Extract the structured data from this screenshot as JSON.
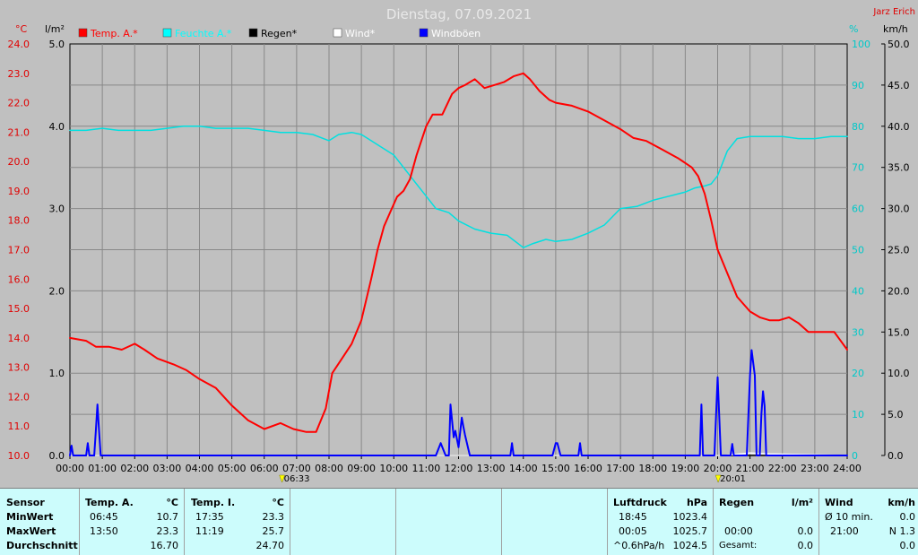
{
  "header": {
    "title": "Dienstag, 07.09.2021",
    "author": "Jarz Erich"
  },
  "axis_units": {
    "temp": "°C",
    "rain": "l/m²",
    "humidity": "%",
    "wind": "km/h"
  },
  "colors": {
    "temp": "#ff0000",
    "humidity": "#00e0e0",
    "rain": "#000000",
    "wind": "#ffffff",
    "gust": "#0000ff",
    "background": "#c0c0c0",
    "grid": "#888888",
    "stats_bg": "#ccfcfc"
  },
  "chart_data": {
    "type": "line",
    "title": "Dienstag, 07.09.2021",
    "legend": [
      {
        "label": "Temp. A.*",
        "color": "#ff0000"
      },
      {
        "label": "Feuchte A.*",
        "color": "#00ffff"
      },
      {
        "label": "Regen*",
        "color": "#000000"
      },
      {
        "label": "Wind*",
        "color": "#ffffff"
      },
      {
        "label": "Windböen",
        "color": "#0000ff"
      }
    ],
    "legend_position": "top-left",
    "grid": true,
    "x_ticks": [
      "00:00",
      "01:00",
      "02:00",
      "03:00",
      "04:00",
      "05:00",
      "06:00",
      "07:00",
      "08:00",
      "09:00",
      "10:00",
      "11:00",
      "12:00",
      "13:00",
      "14:00",
      "15:00",
      "16:00",
      "17:00",
      "18:00",
      "19:00",
      "20:00",
      "21:00",
      "22:00",
      "23:00",
      "24:00"
    ],
    "xlim_hours": [
      0,
      24
    ],
    "temp_axis": {
      "unit": "°C",
      "range": [
        10.0,
        24.0
      ],
      "ticks": [
        "24.0",
        "23.0",
        "22.0",
        "21.0",
        "20.0",
        "19.0",
        "18.0",
        "17.0",
        "16.0",
        "15.0",
        "14.0",
        "13.0",
        "12.0",
        "11.0",
        "10.0"
      ]
    },
    "rain_axis": {
      "unit": "l/m²",
      "range": [
        0.0,
        5.0
      ],
      "ticks": [
        "5.0",
        "4.0",
        "3.0",
        "2.0",
        "1.0",
        "0.0"
      ]
    },
    "humidity_axis": {
      "unit": "%",
      "range": [
        0,
        100
      ],
      "ticks": [
        "100",
        "90",
        "80",
        "70",
        "60",
        "50",
        "40",
        "30",
        "20",
        "10",
        "0"
      ]
    },
    "wind_axis": {
      "unit": "km/h",
      "range": [
        0.0,
        50.0
      ],
      "ticks": [
        "50.0",
        "45.0",
        "40.0",
        "35.0",
        "30.0",
        "25.0",
        "20.0",
        "15.0",
        "10.0",
        "5.0",
        "0.0"
      ]
    },
    "sunrise": "06:33",
    "sunset": "20:01",
    "series": [
      {
        "name": "Temp. A.*",
        "axis": "temp",
        "x": [
          0,
          0.5,
          0.8,
          1.2,
          1.6,
          2.0,
          2.3,
          2.7,
          3.2,
          3.6,
          4.0,
          4.5,
          5.0,
          5.5,
          6.0,
          6.5,
          6.9,
          7.3,
          7.6,
          7.9,
          8.1,
          8.4,
          8.7,
          9.0,
          9.3,
          9.5,
          9.7,
          9.9,
          10.1,
          10.3,
          10.5,
          10.7,
          11.0,
          11.2,
          11.5,
          11.8,
          12.0,
          12.2,
          12.5,
          12.8,
          13.1,
          13.4,
          13.7,
          14.0,
          14.2,
          14.5,
          14.8,
          15.0,
          15.5,
          16.0,
          16.5,
          17.0,
          17.4,
          17.8,
          18.3,
          18.8,
          19.2,
          19.4,
          19.6,
          19.8,
          20.0,
          20.3,
          20.6,
          21.0,
          21.3,
          21.6,
          21.9,
          22.2,
          22.5,
          22.8,
          23.2,
          23.6,
          24.0
        ],
        "y": [
          14.0,
          13.9,
          13.7,
          13.7,
          13.6,
          13.8,
          13.6,
          13.3,
          13.1,
          12.9,
          12.6,
          12.3,
          11.7,
          11.2,
          10.9,
          11.1,
          10.9,
          10.8,
          10.8,
          11.6,
          12.8,
          13.3,
          13.8,
          14.6,
          16.0,
          17.0,
          17.8,
          18.3,
          18.8,
          19.0,
          19.4,
          20.2,
          21.2,
          21.6,
          21.6,
          22.3,
          22.5,
          22.6,
          22.8,
          22.5,
          22.6,
          22.7,
          22.9,
          23.0,
          22.8,
          22.4,
          22.1,
          22.0,
          21.9,
          21.7,
          21.4,
          21.1,
          20.8,
          20.7,
          20.4,
          20.1,
          19.8,
          19.5,
          18.9,
          18.0,
          17.0,
          16.2,
          15.4,
          14.9,
          14.7,
          14.6,
          14.6,
          14.7,
          14.5,
          14.2,
          14.2,
          14.2,
          13.6
        ]
      },
      {
        "name": "Feuchte A.*",
        "axis": "humidity",
        "x": [
          0,
          0.5,
          1.0,
          1.5,
          2.0,
          2.5,
          3.0,
          3.5,
          4.0,
          4.5,
          5.0,
          5.5,
          6.0,
          6.5,
          7.0,
          7.5,
          8.0,
          8.3,
          8.7,
          9.0,
          9.3,
          9.6,
          10.0,
          10.3,
          10.7,
          11.0,
          11.3,
          11.7,
          12.0,
          12.5,
          13.0,
          13.5,
          14.0,
          14.3,
          14.7,
          15.0,
          15.5,
          16.0,
          16.5,
          17.0,
          17.5,
          18.0,
          18.5,
          19.0,
          19.3,
          19.6,
          19.8,
          20.0,
          20.3,
          20.6,
          21.0,
          21.5,
          22.0,
          22.5,
          23.0,
          23.5,
          24.0
        ],
        "y": [
          79,
          79,
          79.5,
          79,
          79,
          79,
          79.5,
          80,
          80,
          79.5,
          79.5,
          79.5,
          79,
          78.5,
          78.5,
          78,
          76.5,
          78,
          78.5,
          78,
          76.5,
          75,
          73,
          70,
          66,
          63,
          60,
          59,
          57,
          55,
          54,
          53.5,
          50.5,
          51.5,
          52.5,
          52,
          52.5,
          54,
          56,
          60,
          60.5,
          62,
          63,
          64,
          65,
          65.5,
          66,
          68,
          74,
          77,
          77.5,
          77.5,
          77.5,
          77,
          77,
          77.5,
          77.5
        ]
      },
      {
        "name": "Regen*",
        "axis": "rain",
        "x": [
          0,
          24
        ],
        "y": [
          0,
          0
        ]
      },
      {
        "name": "Wind*",
        "axis": "wind",
        "x": [
          0,
          20.2,
          21.0,
          21.6,
          24
        ],
        "y": [
          0,
          0,
          0.3,
          0.2,
          0
        ]
      },
      {
        "name": "Windböen",
        "axis": "wind",
        "x": [
          0,
          0.05,
          0.1,
          0.15,
          0.5,
          0.55,
          0.6,
          0.65,
          0.75,
          0.8,
          0.85,
          0.9,
          0.95,
          1.0,
          11.3,
          11.45,
          11.6,
          11.7,
          11.75,
          11.85,
          11.9,
          12.0,
          12.1,
          12.15,
          12.2,
          12.35,
          12.5,
          12.6,
          13.6,
          13.65,
          13.7,
          13.75,
          14.9,
          15.0,
          15.05,
          15.15,
          15.2,
          15.7,
          15.75,
          15.8,
          15.85,
          19.45,
          19.5,
          19.55,
          19.6,
          19.9,
          20.0,
          20.1,
          20.2,
          20.4,
          20.45,
          20.5,
          20.55,
          20.9,
          21.0,
          21.05,
          21.15,
          21.2,
          21.3,
          21.35,
          21.4,
          21.45,
          21.5,
          21.55,
          24
        ],
        "y": [
          0,
          1.2,
          0,
          0,
          0,
          1.5,
          0,
          0,
          0,
          3,
          6.2,
          3,
          0,
          0,
          0,
          1.5,
          0,
          0,
          6.2,
          2.2,
          3,
          1,
          4.6,
          3.5,
          2.5,
          0,
          0,
          0,
          0,
          1.5,
          0,
          0,
          0,
          1.5,
          1.5,
          0,
          0,
          0,
          1.5,
          0,
          0,
          0,
          6.2,
          0,
          0,
          0,
          9.5,
          0,
          0,
          0,
          1.4,
          0,
          0,
          0,
          9.7,
          12.8,
          9.7,
          0,
          0,
          5,
          7.8,
          6,
          0,
          0,
          0
        ]
      }
    ]
  },
  "stats": {
    "sensor": {
      "label": "Sensor",
      "min": "MinWert",
      "max": "MaxWert",
      "avg": "Durchschnitt"
    },
    "temp_a": {
      "label": "Temp. A.",
      "unit": "°C",
      "min_time": "06:45",
      "min_val": "10.7",
      "max_time": "13:50",
      "max_val": "23.3",
      "avg": "16.70"
    },
    "temp_i": {
      "label": "Temp. I.",
      "unit": "°C",
      "min_time": "17:35",
      "min_val": "23.3",
      "max_time": "11:19",
      "max_val": "25.7",
      "avg": "24.70"
    },
    "pressure": {
      "label": "Luftdruck",
      "unit": "hPa",
      "min_time": "18:45",
      "min_val": "1023.4",
      "max_time": "00:05",
      "max_val": "1025.7",
      "trend_label": "^0.6hPa/h",
      "trend_val": "1024.5"
    },
    "rain": {
      "label": "Regen",
      "unit": "l/m²",
      "time": "00:00",
      "val": "0.0",
      "total_label": "Gesamt:",
      "total_val": "0.0"
    },
    "wind": {
      "label": "Wind",
      "unit": "km/h",
      "avg_label": "Ø 10 min.",
      "avg_val": "0.0",
      "time": "21:00",
      "dir_val": "N 1.3",
      "last_val": "0.0"
    }
  }
}
